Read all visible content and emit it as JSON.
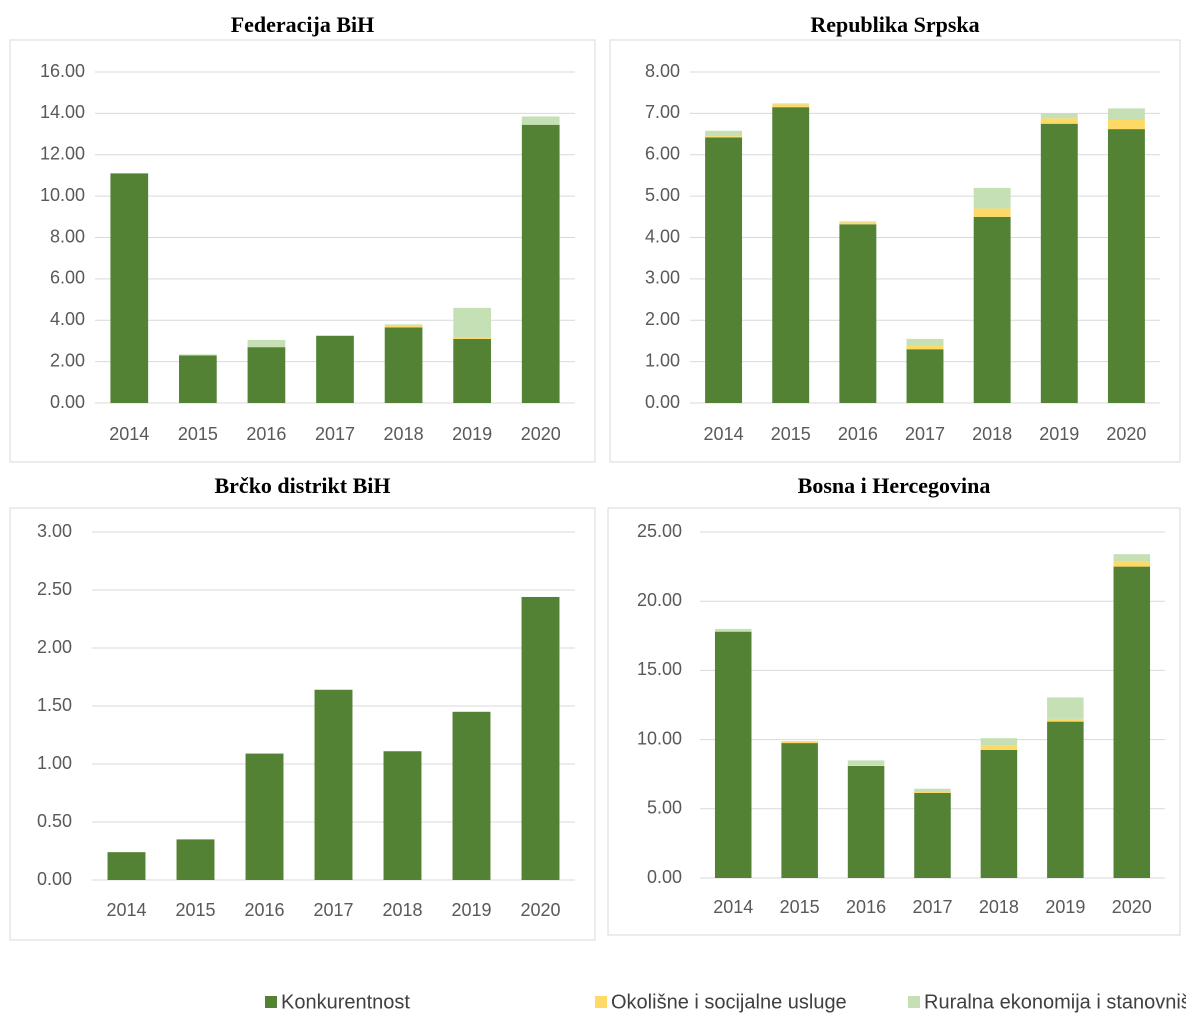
{
  "chart_data": [
    {
      "type": "bar",
      "stacked": true,
      "title": "Federacija BiH",
      "categories": [
        "2014",
        "2015",
        "2016",
        "2017",
        "2018",
        "2019",
        "2020"
      ],
      "series": [
        {
          "name": "Konkurentnost",
          "color": "#548235",
          "values": [
            11.1,
            2.3,
            2.7,
            3.25,
            3.65,
            3.1,
            13.45
          ]
        },
        {
          "name": "Okolišne i socijalne usluge",
          "color": "#ffd966",
          "values": [
            0,
            0,
            0,
            0,
            0.1,
            0.05,
            0
          ]
        },
        {
          "name": "Ruralna ekonomija i stanovništvo",
          "color": "#c5e0b4",
          "values": [
            0,
            0.05,
            0.35,
            0.02,
            0.05,
            1.45,
            0.4
          ]
        }
      ],
      "ylim": [
        0,
        16
      ],
      "yticks": [
        {
          "value": 0,
          "label": "0.00"
        },
        {
          "value": 2,
          "label": "2.00"
        },
        {
          "value": 4,
          "label": "4.00"
        },
        {
          "value": 6,
          "label": "6.00"
        },
        {
          "value": 8,
          "label": "8.00"
        },
        {
          "value": 10,
          "label": "10.00"
        },
        {
          "value": 12,
          "label": "12.00"
        },
        {
          "value": 14,
          "label": "14.00"
        },
        {
          "value": 16,
          "label": "16.00"
        }
      ],
      "grid": true
    },
    {
      "type": "bar",
      "stacked": true,
      "title": "Republika Srpska",
      "categories": [
        "2014",
        "2015",
        "2016",
        "2017",
        "2018",
        "2019",
        "2020"
      ],
      "series": [
        {
          "name": "Konkurentnost",
          "color": "#548235",
          "values": [
            6.42,
            7.15,
            4.32,
            1.3,
            4.5,
            6.75,
            6.62
          ]
        },
        {
          "name": "Okolišne i socijalne usluge",
          "color": "#ffd966",
          "values": [
            0.03,
            0.07,
            0.05,
            0.08,
            0.2,
            0.13,
            0.22
          ]
        },
        {
          "name": "Ruralna ekonomija i stanovništvo",
          "color": "#c5e0b4",
          "values": [
            0.13,
            0.02,
            0.02,
            0.17,
            0.5,
            0.12,
            0.28
          ]
        }
      ],
      "ylim": [
        0,
        8
      ],
      "yticks": [
        {
          "value": 0,
          "label": "0.00"
        },
        {
          "value": 1,
          "label": "1.00"
        },
        {
          "value": 2,
          "label": "2.00"
        },
        {
          "value": 3,
          "label": "3.00"
        },
        {
          "value": 4,
          "label": "4.00"
        },
        {
          "value": 5,
          "label": "5.00"
        },
        {
          "value": 6,
          "label": "6.00"
        },
        {
          "value": 7,
          "label": "7.00"
        },
        {
          "value": 8,
          "label": "8.00"
        }
      ],
      "grid": true
    },
    {
      "type": "bar",
      "stacked": true,
      "title": "Brčko distrikt BiH",
      "categories": [
        "2014",
        "2015",
        "2016",
        "2017",
        "2018",
        "2019",
        "2020"
      ],
      "series": [
        {
          "name": "Konkurentnost",
          "color": "#548235",
          "values": [
            0.24,
            0.35,
            1.09,
            1.64,
            1.11,
            1.45,
            2.44
          ]
        }
      ],
      "ylim": [
        0,
        3
      ],
      "yticks": [
        {
          "value": 0,
          "label": "0.00"
        },
        {
          "value": 0.5,
          "label": "0.50"
        },
        {
          "value": 1,
          "label": "1.00"
        },
        {
          "value": 1.5,
          "label": "1.50"
        },
        {
          "value": 2,
          "label": "2.00"
        },
        {
          "value": 2.5,
          "label": "2.50"
        },
        {
          "value": 3,
          "label": "3.00"
        }
      ],
      "grid": true
    },
    {
      "type": "bar",
      "stacked": true,
      "title": "Bosna i Hercegovina",
      "categories": [
        "2014",
        "2015",
        "2016",
        "2017",
        "2018",
        "2019",
        "2020"
      ],
      "series": [
        {
          "name": "Konkurentnost",
          "color": "#548235",
          "values": [
            17.8,
            9.75,
            8.1,
            6.15,
            9.25,
            11.3,
            22.5
          ]
        },
        {
          "name": "Okolišne i socijalne usluge",
          "color": "#ffd966",
          "values": [
            0.05,
            0.1,
            0.05,
            0.1,
            0.3,
            0.2,
            0.4
          ]
        },
        {
          "name": "Ruralna ekonomija i stanovništvo",
          "color": "#c5e0b4",
          "values": [
            0.15,
            0.05,
            0.35,
            0.2,
            0.55,
            1.55,
            0.5
          ]
        }
      ],
      "ylim": [
        0,
        25
      ],
      "yticks": [
        {
          "value": 0,
          "label": "0.00"
        },
        {
          "value": 5,
          "label": "5.00"
        },
        {
          "value": 10,
          "label": "10.00"
        },
        {
          "value": 15,
          "label": "15.00"
        },
        {
          "value": 20,
          "label": "20.00"
        },
        {
          "value": 25,
          "label": "25.00"
        }
      ],
      "grid": true
    }
  ]
}
